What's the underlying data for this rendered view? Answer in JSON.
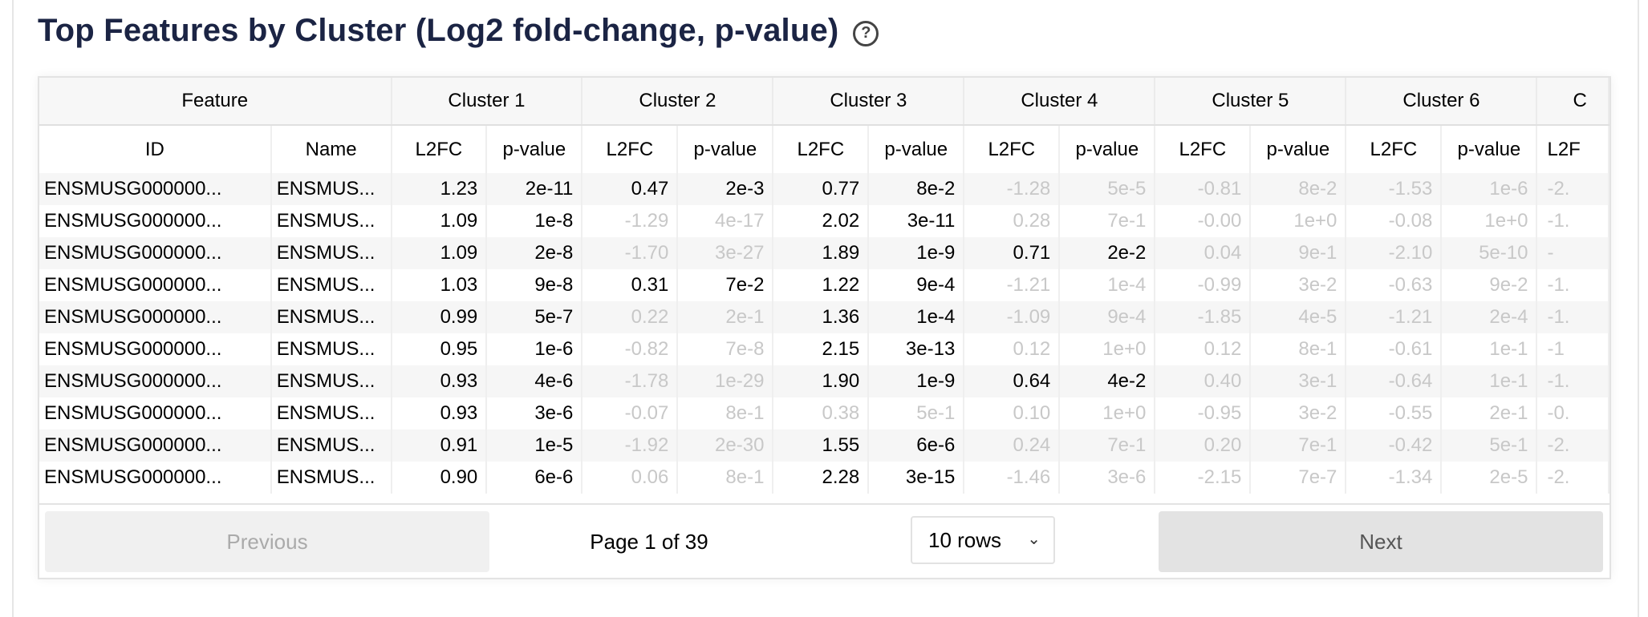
{
  "title": "Top Features by Cluster (Log2 fold-change, p-value)",
  "help_icon": "question-circle-icon",
  "colors": {
    "title": "#1b2444",
    "dim_text": "#c8c8c8",
    "stripe": "#f6f6f6"
  },
  "table": {
    "group_headers": [
      "Feature",
      "Cluster 1",
      "Cluster 2",
      "Cluster 3",
      "Cluster 4",
      "Cluster 5",
      "Cluster 6",
      "C"
    ],
    "sub_headers": [
      "ID",
      "Name",
      "L2FC",
      "p-value",
      "L2FC",
      "p-value",
      "L2FC",
      "p-value",
      "L2FC",
      "p-value",
      "L2FC",
      "p-value",
      "L2FC",
      "p-value",
      "L2F"
    ],
    "rows": [
      {
        "id": "ENSMUSG000000...",
        "name": "ENSMUS...",
        "clusters": [
          [
            "1.23",
            "2e-11",
            true
          ],
          [
            "0.47",
            "2e-3",
            true
          ],
          [
            "0.77",
            "8e-2",
            true
          ],
          [
            "-1.28",
            "5e-5",
            false
          ],
          [
            "-0.81",
            "8e-2",
            false
          ],
          [
            "-1.53",
            "1e-6",
            false
          ]
        ],
        "partial": "-2."
      },
      {
        "id": "ENSMUSG000000...",
        "name": "ENSMUS...",
        "clusters": [
          [
            "1.09",
            "1e-8",
            true
          ],
          [
            "-1.29",
            "4e-17",
            false
          ],
          [
            "2.02",
            "3e-11",
            true
          ],
          [
            "0.28",
            "7e-1",
            false
          ],
          [
            "-0.00",
            "1e+0",
            false
          ],
          [
            "-0.08",
            "1e+0",
            false
          ]
        ],
        "partial": "-1."
      },
      {
        "id": "ENSMUSG000000...",
        "name": "ENSMUS...",
        "clusters": [
          [
            "1.09",
            "2e-8",
            true
          ],
          [
            "-1.70",
            "3e-27",
            false
          ],
          [
            "1.89",
            "1e-9",
            true
          ],
          [
            "0.71",
            "2e-2",
            true
          ],
          [
            "0.04",
            "9e-1",
            false
          ],
          [
            "-2.10",
            "5e-10",
            false
          ]
        ],
        "partial": "-"
      },
      {
        "id": "ENSMUSG000000...",
        "name": "ENSMUS...",
        "clusters": [
          [
            "1.03",
            "9e-8",
            true
          ],
          [
            "0.31",
            "7e-2",
            true
          ],
          [
            "1.22",
            "9e-4",
            true
          ],
          [
            "-1.21",
            "1e-4",
            false
          ],
          [
            "-0.99",
            "3e-2",
            false
          ],
          [
            "-0.63",
            "9e-2",
            false
          ]
        ],
        "partial": "-1."
      },
      {
        "id": "ENSMUSG000000...",
        "name": "ENSMUS...",
        "clusters": [
          [
            "0.99",
            "5e-7",
            true
          ],
          [
            "0.22",
            "2e-1",
            false
          ],
          [
            "1.36",
            "1e-4",
            true
          ],
          [
            "-1.09",
            "9e-4",
            false
          ],
          [
            "-1.85",
            "4e-5",
            false
          ],
          [
            "-1.21",
            "2e-4",
            false
          ]
        ],
        "partial": "-1."
      },
      {
        "id": "ENSMUSG000000...",
        "name": "ENSMUS...",
        "clusters": [
          [
            "0.95",
            "1e-6",
            true
          ],
          [
            "-0.82",
            "7e-8",
            false
          ],
          [
            "2.15",
            "3e-13",
            true
          ],
          [
            "0.12",
            "1e+0",
            false
          ],
          [
            "0.12",
            "8e-1",
            false
          ],
          [
            "-0.61",
            "1e-1",
            false
          ]
        ],
        "partial": "-1"
      },
      {
        "id": "ENSMUSG000000...",
        "name": "ENSMUS...",
        "clusters": [
          [
            "0.93",
            "4e-6",
            true
          ],
          [
            "-1.78",
            "1e-29",
            false
          ],
          [
            "1.90",
            "1e-9",
            true
          ],
          [
            "0.64",
            "4e-2",
            true
          ],
          [
            "0.40",
            "3e-1",
            false
          ],
          [
            "-0.64",
            "1e-1",
            false
          ]
        ],
        "partial": "-1."
      },
      {
        "id": "ENSMUSG000000...",
        "name": "ENSMUS...",
        "clusters": [
          [
            "0.93",
            "3e-6",
            true
          ],
          [
            "-0.07",
            "8e-1",
            false
          ],
          [
            "0.38",
            "5e-1",
            false
          ],
          [
            "0.10",
            "1e+0",
            false
          ],
          [
            "-0.95",
            "3e-2",
            false
          ],
          [
            "-0.55",
            "2e-1",
            false
          ]
        ],
        "partial": "-0."
      },
      {
        "id": "ENSMUSG000000...",
        "name": "ENSMUS...",
        "clusters": [
          [
            "0.91",
            "1e-5",
            true
          ],
          [
            "-1.92",
            "2e-30",
            false
          ],
          [
            "1.55",
            "6e-6",
            true
          ],
          [
            "0.24",
            "7e-1",
            false
          ],
          [
            "0.20",
            "7e-1",
            false
          ],
          [
            "-0.42",
            "5e-1",
            false
          ]
        ],
        "partial": "-2."
      },
      {
        "id": "ENSMUSG000000...",
        "name": "ENSMUS...",
        "clusters": [
          [
            "0.90",
            "6e-6",
            true
          ],
          [
            "0.06",
            "8e-1",
            false
          ],
          [
            "2.28",
            "3e-15",
            true
          ],
          [
            "-1.46",
            "3e-6",
            false
          ],
          [
            "-2.15",
            "7e-7",
            false
          ],
          [
            "-1.34",
            "2e-5",
            false
          ]
        ],
        "partial": "-2."
      }
    ]
  },
  "pagination": {
    "previous_label": "Previous",
    "next_label": "Next",
    "page_info": "Page 1 of 39",
    "rows_select": "10 rows",
    "select_icon": "chevron-down-icon"
  }
}
